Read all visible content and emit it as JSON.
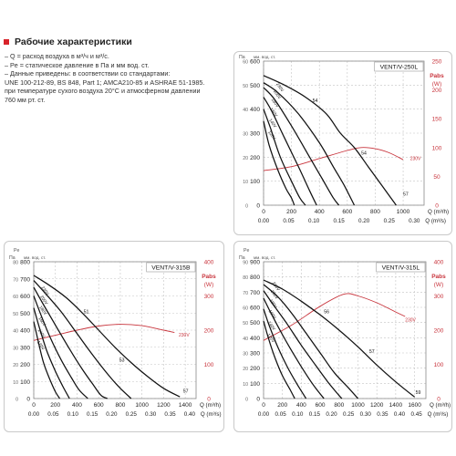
{
  "header": {
    "title": "Рабочие характеристики"
  },
  "notes": [
    "– Q = расход воздуха в м³/ч и м³/с.",
    "– Pe = статическое давление в Па и мм вод. ст.",
    "– Данные приведены: в соответствии со стандартами:",
    "UNE 100-212-89, BS 848, Part 1; AMCA210-85 и ASHRAE 51-1985.",
    "при температуре сухого воздуха 20°C и атмосферном давлении",
    "760 мм рт. ст."
  ],
  "chart_data": [
    {
      "type": "line",
      "title": "VENT/V-250L",
      "left_axis": {
        "pe_label": "Pe",
        "pa_label": "Па",
        "mm_label": "мм. вод. ст.",
        "pa_ticks": [
          0,
          100,
          200,
          300,
          400,
          500,
          600
        ],
        "mm_ticks": [
          0,
          10,
          20,
          30,
          40,
          50,
          60
        ],
        "ylim": [
          0,
          600
        ]
      },
      "right_axis": {
        "label": "Pabs",
        "unit": "(W)",
        "ticks": [
          0,
          50,
          100,
          150,
          200,
          250
        ],
        "ylim": [
          0,
          250
        ]
      },
      "x_axis": {
        "ticks": [
          0,
          200,
          400,
          600,
          800,
          1000
        ],
        "label": "Q (m³/h)",
        "xlim": [
          0,
          1150
        ]
      },
      "x2_axis": {
        "ticks": [
          "0.00",
          "0.05",
          "0.10",
          "0.15",
          "0.20",
          "0.25",
          "0.30"
        ],
        "label": "Q (m³/s)"
      },
      "series": [
        {
          "points": [
            [
              0,
              540
            ],
            [
              150,
              500
            ],
            [
              300,
              450
            ],
            [
              450,
              380
            ],
            [
              550,
              300
            ],
            [
              650,
              240
            ],
            [
              750,
              160
            ],
            [
              850,
              80
            ],
            [
              950,
              0
            ]
          ],
          "labels": [
            {
              "text": "54",
              "at": [
                350,
                430
              ]
            },
            {
              "text": "54",
              "at": [
                700,
                210
              ]
            }
          ]
        },
        {
          "points": [
            [
              0,
              510
            ],
            [
              100,
              470
            ],
            [
              250,
              380
            ],
            [
              400,
              260
            ],
            [
              500,
              160
            ],
            [
              580,
              80
            ],
            [
              650,
              0
            ]
          ]
        },
        {
          "points": [
            [
              0,
              490
            ],
            [
              80,
              440
            ],
            [
              200,
              330
            ],
            [
              330,
              200
            ],
            [
              420,
              110
            ],
            [
              500,
              30
            ],
            [
              540,
              0
            ]
          ]
        },
        {
          "points": [
            [
              0,
              450
            ],
            [
              60,
              390
            ],
            [
              150,
              280
            ],
            [
              250,
              160
            ],
            [
              330,
              60
            ],
            [
              380,
              0
            ]
          ]
        },
        {
          "points": [
            [
              0,
              400
            ],
            [
              50,
              320
            ],
            [
              120,
              200
            ],
            [
              200,
              100
            ],
            [
              260,
              30
            ],
            [
              300,
              0
            ]
          ]
        },
        {
          "points": [
            [
              0,
              350
            ],
            [
              40,
              250
            ],
            [
              100,
              150
            ],
            [
              160,
              70
            ],
            [
              200,
              30
            ],
            [
              220,
              0
            ]
          ]
        }
      ],
      "rating_labels": [
        {
          "text": "230V",
          "at": [
            90,
            505
          ]
        },
        {
          "text": "200V",
          "at": [
            70,
            475
          ]
        },
        {
          "text": "180V",
          "at": [
            55,
            440
          ]
        },
        {
          "text": "160V",
          "at": [
            45,
            400
          ]
        },
        {
          "text": "140V",
          "at": [
            38,
            355
          ]
        },
        {
          "text": "120V",
          "at": [
            32,
            305
          ]
        }
      ],
      "end_label": {
        "text": "57",
        "at": [
          1000,
          40
        ]
      },
      "power": {
        "points": [
          [
            0,
            60
          ],
          [
            200,
            67
          ],
          [
            400,
            81
          ],
          [
            600,
            95
          ],
          [
            700,
            100
          ],
          [
            800,
            98
          ],
          [
            900,
            91
          ],
          [
            1000,
            79
          ]
        ],
        "label": "230V",
        "label_at": [
          1050,
          78
        ]
      }
    },
    {
      "type": "line",
      "title": "VENT/V-315B",
      "left_axis": {
        "pe_label": "Pe",
        "pa_label": "Па",
        "mm_label": "мм. вод. ст.",
        "pa_ticks": [
          0,
          100,
          200,
          300,
          400,
          500,
          600,
          700,
          800
        ],
        "mm_ticks": [
          0,
          10,
          20,
          30,
          40,
          50,
          60,
          70,
          80
        ],
        "ylim": [
          0,
          800
        ]
      },
      "right_axis": {
        "label": "Pabs",
        "unit": "(W)",
        "ticks": [
          0,
          100,
          200,
          300,
          400
        ],
        "ylim": [
          0,
          400
        ]
      },
      "x_axis": {
        "ticks": [
          0,
          200,
          400,
          600,
          800,
          1000,
          1200,
          1400
        ],
        "label": "Q (m³/h)",
        "xlim": [
          0,
          1500
        ]
      },
      "x2_axis": {
        "ticks": [
          "0.00",
          "0.05",
          "0.10",
          "0.15",
          "0.20",
          "0.25",
          "0.30",
          "0.35",
          "0.40"
        ],
        "label": "Q (m³/s)"
      },
      "series": [
        {
          "points": [
            [
              0,
              720
            ],
            [
              150,
              660
            ],
            [
              300,
              590
            ],
            [
              450,
              500
            ],
            [
              600,
              400
            ],
            [
              750,
              300
            ],
            [
              900,
              210
            ],
            [
              1050,
              130
            ],
            [
              1200,
              60
            ],
            [
              1350,
              10
            ]
          ],
          "labels": [
            {
              "text": "51",
              "at": [
                460,
                500
              ]
            }
          ]
        },
        {
          "points": [
            [
              0,
              690
            ],
            [
              100,
              620
            ],
            [
              250,
              510
            ],
            [
              400,
              380
            ],
            [
              550,
              250
            ],
            [
              700,
              130
            ],
            [
              800,
              60
            ],
            [
              900,
              0
            ]
          ]
        },
        {
          "points": [
            [
              0,
              650
            ],
            [
              80,
              560
            ],
            [
              200,
              430
            ],
            [
              330,
              290
            ],
            [
              450,
              170
            ],
            [
              550,
              80
            ],
            [
              620,
              20
            ],
            [
              680,
              0
            ]
          ]
        },
        {
          "points": [
            [
              0,
              600
            ],
            [
              60,
              500
            ],
            [
              150,
              360
            ],
            [
              250,
              230
            ],
            [
              350,
              120
            ],
            [
              420,
              50
            ],
            [
              500,
              0
            ]
          ]
        },
        {
          "points": [
            [
              0,
              530
            ],
            [
              50,
              420
            ],
            [
              120,
              280
            ],
            [
              200,
              160
            ],
            [
              270,
              70
            ],
            [
              330,
              0
            ]
          ]
        },
        {
          "points": [
            [
              0,
              450
            ],
            [
              40,
              340
            ],
            [
              90,
              210
            ],
            [
              150,
              110
            ],
            [
              200,
              40
            ],
            [
              240,
              0
            ]
          ]
        }
      ],
      "rating_labels": [
        {
          "text": "230V",
          "at": [
            70,
            650
          ]
        },
        {
          "text": "200V",
          "at": [
            60,
            595
          ]
        },
        {
          "text": "180V",
          "at": [
            50,
            535
          ]
        },
        {
          "text": "160V",
          "at": [
            42,
            470
          ]
        },
        {
          "text": "140V",
          "at": [
            36,
            400
          ]
        },
        {
          "text": "120V",
          "at": [
            30,
            330
          ]
        }
      ],
      "mid_label": {
        "text": "53",
        "at": [
          790,
          215
        ]
      },
      "end_label": {
        "text": "57",
        "at": [
          1380,
          35
        ]
      },
      "power": {
        "points": [
          [
            0,
            170
          ],
          [
            200,
            185
          ],
          [
            400,
            200
          ],
          [
            600,
            212
          ],
          [
            800,
            217
          ],
          [
            1000,
            213
          ],
          [
            1200,
            200
          ],
          [
            1300,
            193
          ]
        ],
        "label": "230V",
        "label_at": [
          1340,
          182
        ]
      }
    },
    {
      "type": "line",
      "title": "VENT/V-315L",
      "left_axis": {
        "pe_label": "Pe",
        "pa_label": "Па",
        "mm_label": "мм. вод. ст.",
        "pa_ticks": [
          0,
          100,
          200,
          300,
          400,
          500,
          600,
          700,
          800,
          900
        ],
        "mm_ticks": [
          0,
          10,
          20,
          30,
          40,
          50,
          60,
          70,
          80,
          90
        ],
        "ylim": [
          0,
          900
        ]
      },
      "right_axis": {
        "label": "Pabs",
        "unit": "(W)",
        "ticks": [
          0,
          100,
          200,
          300,
          400
        ],
        "ylim": [
          0,
          400
        ]
      },
      "x_axis": {
        "ticks": [
          0,
          200,
          400,
          600,
          800,
          1000,
          1200,
          1400,
          1600
        ],
        "label": "Q (m³/h)",
        "xlim": [
          0,
          1720
        ]
      },
      "x2_axis": {
        "ticks": [
          "0.00",
          "0.05",
          "0.10",
          "0.15",
          "0.20",
          "0.25",
          "0.30",
          "0.35",
          "0.40",
          "0.45"
        ],
        "label": "Q (m³/s)"
      },
      "series": [
        {
          "points": [
            [
              0,
              780
            ],
            [
              200,
              720
            ],
            [
              400,
              640
            ],
            [
              600,
              550
            ],
            [
              800,
              450
            ],
            [
              1000,
              340
            ],
            [
              1200,
              220
            ],
            [
              1400,
              110
            ],
            [
              1600,
              10
            ]
          ],
          "labels": [
            {
              "text": "56",
              "at": [
                640,
                560
              ]
            },
            {
              "text": "57",
              "at": [
                1120,
                300
              ]
            }
          ]
        },
        {
          "points": [
            [
              0,
              750
            ],
            [
              150,
              670
            ],
            [
              300,
              560
            ],
            [
              450,
              430
            ],
            [
              600,
              300
            ],
            [
              750,
              170
            ],
            [
              900,
              70
            ],
            [
              1000,
              0
            ]
          ]
        },
        {
          "points": [
            [
              0,
              710
            ],
            [
              100,
              620
            ],
            [
              250,
              490
            ],
            [
              400,
              350
            ],
            [
              550,
              220
            ],
            [
              680,
              110
            ],
            [
              800,
              20
            ],
            [
              830,
              0
            ]
          ]
        },
        {
          "points": [
            [
              0,
              660
            ],
            [
              80,
              560
            ],
            [
              200,
              420
            ],
            [
              330,
              280
            ],
            [
              450,
              160
            ],
            [
              550,
              70
            ],
            [
              640,
              0
            ]
          ]
        },
        {
          "points": [
            [
              0,
              590
            ],
            [
              60,
              480
            ],
            [
              150,
              340
            ],
            [
              250,
              210
            ],
            [
              350,
              100
            ],
            [
              430,
              20
            ],
            [
              450,
              0
            ]
          ]
        },
        {
          "points": [
            [
              0,
              510
            ],
            [
              50,
              400
            ],
            [
              120,
              270
            ],
            [
              200,
              150
            ],
            [
              280,
              60
            ],
            [
              330,
              0
            ]
          ]
        }
      ],
      "rating_labels": [
        {
          "text": "230V",
          "at": [
            90,
            760
          ]
        },
        {
          "text": "200V",
          "at": [
            75,
            705
          ]
        },
        {
          "text": "180V",
          "at": [
            62,
            645
          ]
        },
        {
          "text": "160V",
          "at": [
            52,
            575
          ]
        },
        {
          "text": "140V",
          "at": [
            44,
            500
          ]
        },
        {
          "text": "120V",
          "at": [
            38,
            420
          ]
        }
      ],
      "end_label": {
        "text": "59",
        "at": [
          1610,
          30
        ]
      },
      "power": {
        "points": [
          [
            0,
            170
          ],
          [
            300,
            215
          ],
          [
            600,
            270
          ],
          [
            850,
            305
          ],
          [
            1000,
            300
          ],
          [
            1200,
            280
          ],
          [
            1400,
            253
          ],
          [
            1500,
            240
          ]
        ],
        "label": "230V",
        "label_at": [
          1500,
          225
        ]
      }
    }
  ]
}
